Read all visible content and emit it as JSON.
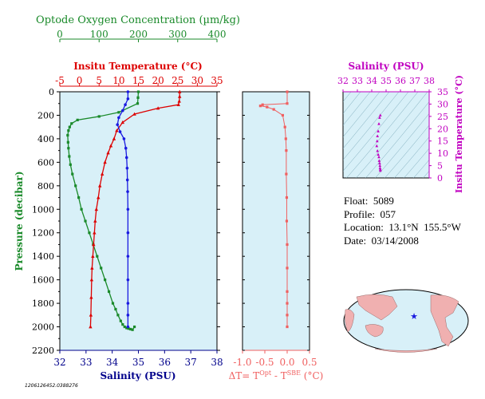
{
  "chart_data": [
    {
      "type": "line",
      "panel": "main",
      "x_axes": [
        {
          "label": "Optode Oxygen Concentration (µm/kg)",
          "ticks": [
            0,
            100,
            200,
            300,
            400
          ],
          "range": [
            0,
            400
          ],
          "color": "#1a8a2a"
        },
        {
          "label": "Insitu Temperature (°C)",
          "ticks": [
            -5,
            0,
            5,
            10,
            15,
            20,
            25,
            30,
            35
          ],
          "range": [
            -5,
            35
          ],
          "color": "#dd0000"
        },
        {
          "label": "Salinity (PSU)",
          "ticks": [
            32,
            33,
            34,
            35,
            36,
            37,
            38
          ],
          "range": [
            32,
            38
          ],
          "color": "#00008b"
        }
      ],
      "ylabel": "Pressure (decibar)",
      "yticks": [
        0,
        200,
        400,
        600,
        800,
        1000,
        1200,
        1400,
        1600,
        1800,
        2000,
        2200
      ],
      "ylim": [
        2200,
        0
      ],
      "series": [
        {
          "name": "Oxygen",
          "color": "#1a8a2a",
          "marker": "square",
          "x": [
            200,
            199,
            198,
            150,
            100,
            45,
            30,
            25,
            22,
            20,
            21,
            22,
            24,
            27,
            32,
            40,
            48,
            55,
            65,
            75,
            85,
            95,
            105,
            115,
            125,
            135,
            142,
            148,
            155,
            160,
            165,
            170,
            175,
            180,
            185,
            190
          ],
          "y": [
            0,
            50,
            100,
            175,
            210,
            240,
            270,
            300,
            330,
            370,
            430,
            480,
            550,
            620,
            700,
            800,
            900,
            1000,
            1100,
            1200,
            1300,
            1400,
            1500,
            1600,
            1700,
            1800,
            1850,
            1900,
            1950,
            1980,
            2000,
            2010,
            2015,
            2020,
            2025,
            2000
          ]
        },
        {
          "name": "Temperature",
          "color": "#dd0000",
          "marker": "triangle",
          "x": [
            25.5,
            25.5,
            25.4,
            25.2,
            20,
            14,
            11,
            9.5,
            8.8,
            8.0,
            7.3,
            6.5,
            5.8,
            5.2,
            4.8,
            4.3,
            4.0,
            3.8,
            3.6,
            3.4,
            3.2,
            3.1,
            3.0,
            2.9,
            2.8
          ],
          "y": [
            0,
            40,
            80,
            110,
            140,
            190,
            260,
            330,
            400,
            460,
            520,
            600,
            700,
            800,
            900,
            1000,
            1100,
            1200,
            1300,
            1400,
            1500,
            1600,
            1750,
            1900,
            2000
          ]
        },
        {
          "name": "Salinity",
          "color": "#1a1ae0",
          "marker": "circle",
          "x": [
            34.6,
            34.6,
            34.5,
            34.4,
            34.25,
            34.2,
            34.3,
            34.45,
            34.52,
            34.55,
            34.57,
            34.58,
            34.59,
            34.6,
            34.6,
            34.6,
            34.6,
            34.6,
            34.6,
            34.6
          ],
          "y": [
            0,
            60,
            110,
            160,
            220,
            280,
            340,
            400,
            480,
            560,
            650,
            750,
            850,
            1000,
            1200,
            1400,
            1600,
            1800,
            1900,
            2000
          ]
        }
      ]
    },
    {
      "type": "line",
      "panel": "delta",
      "xlabel": "ΔT= Tᴼᵖᵗ - Tˢᴮᴱ (°C)",
      "xticks": [
        -1.0,
        -0.5,
        0.0,
        0.5
      ],
      "xlim": [
        -1.0,
        0.5
      ],
      "ylim": [
        2200,
        0
      ],
      "series": [
        {
          "name": "ΔT",
          "color": "#f06060",
          "marker": "square",
          "x": [
            0.0,
            0.0,
            -0.55,
            -0.6,
            -0.45,
            -0.3,
            -0.1,
            -0.05,
            -0.03,
            -0.02,
            -0.02,
            -0.01,
            -0.01,
            0.0,
            0.0,
            0.0,
            0.0,
            0.0,
            0.0
          ],
          "y": [
            0,
            100,
            110,
            120,
            130,
            150,
            200,
            300,
            400,
            500,
            700,
            900,
            1100,
            1300,
            1500,
            1700,
            1800,
            1900,
            2000
          ]
        }
      ]
    },
    {
      "type": "scatter",
      "panel": "ts",
      "title": "Salinity (PSU)",
      "xticks": [
        32,
        33,
        34,
        35,
        36,
        37,
        38
      ],
      "xlim": [
        32,
        38
      ],
      "ylabel": "Insitu Temperature (°C)",
      "yticks": [
        0,
        5,
        10,
        15,
        20,
        25,
        30,
        35
      ],
      "ylim": [
        0,
        35
      ],
      "series": [
        {
          "name": "T-S",
          "color": "#c000c0",
          "x": [
            34.6,
            34.55,
            34.5,
            34.45,
            34.4,
            34.38,
            34.35,
            34.4,
            34.45,
            34.5,
            34.52,
            34.55,
            34.57,
            34.58,
            34.6,
            34.6
          ],
          "y": [
            25.5,
            24.5,
            22,
            19,
            17,
            15,
            13,
            11,
            9.5,
            8.5,
            7,
            6,
            5,
            4,
            3.5,
            3.0
          ]
        }
      ]
    }
  ],
  "info": {
    "float": "Float:  5089",
    "profile": "Profile:  057",
    "location": "Location:  13.1°N  155.5°W",
    "date": "Date:  03/14/2008"
  },
  "footer_id": "1206126452.0388276",
  "colors": {
    "plot_bg": "#d8f0f8",
    "oxygen": "#1a8a2a",
    "temperature": "#dd0000",
    "salinity": "#00008b",
    "delta": "#f06060",
    "ts": "#c000c0",
    "land": "#f0b0b0",
    "ocean": "#d8f0f8"
  }
}
